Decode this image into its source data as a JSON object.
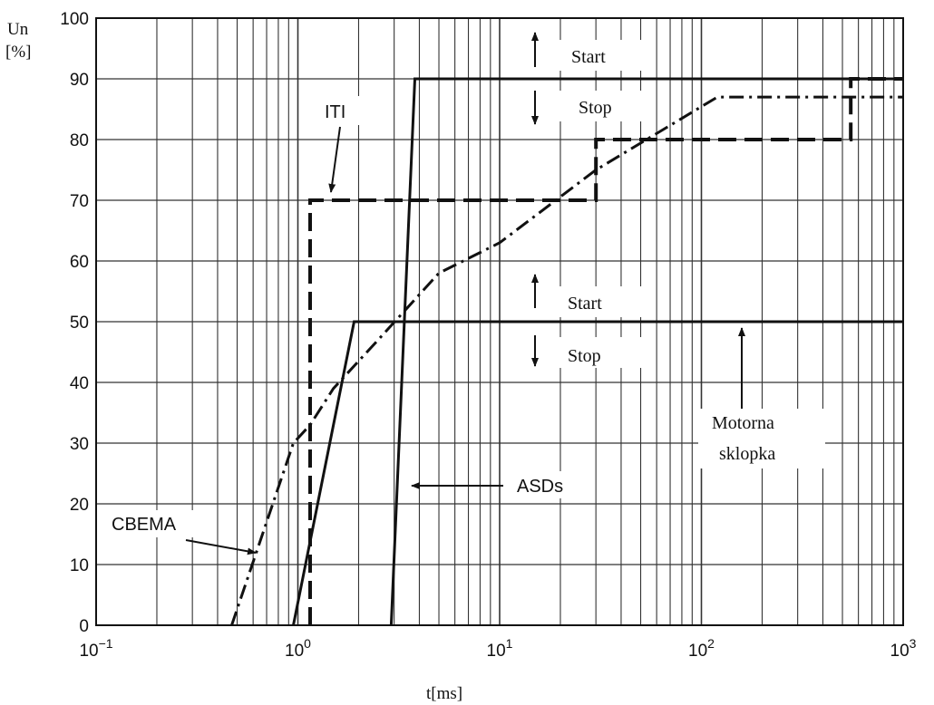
{
  "chart_data": {
    "type": "line",
    "title": "",
    "xlabel": "t[ms]",
    "ylabel_line1": "Un",
    "ylabel_line2": "[%]",
    "x_scale": "log",
    "xlim": [
      0.1,
      1000
    ],
    "ylim": [
      0,
      100
    ],
    "grid": true,
    "x_tick_labels": [
      {
        "value": 0.1,
        "base": "10",
        "exp": "−1"
      },
      {
        "value": 1,
        "base": "10",
        "exp": "0"
      },
      {
        "value": 10,
        "base": "10",
        "exp": "1"
      },
      {
        "value": 100,
        "base": "10",
        "exp": "2"
      },
      {
        "value": 1000,
        "base": "10",
        "exp": "3"
      }
    ],
    "y_ticks": [
      0,
      10,
      20,
      30,
      40,
      50,
      60,
      70,
      80,
      90,
      100
    ],
    "series": [
      {
        "name": "CBEMA",
        "style": "dashdot",
        "x": [
          0.47,
          0.95,
          1.15,
          1.5,
          2.5,
          5,
          10,
          30,
          120,
          1000
        ],
        "y": [
          0,
          30,
          33,
          39,
          47,
          58,
          63,
          75,
          87,
          87
        ]
      },
      {
        "name": "ITI",
        "style": "dashed",
        "x": [
          1.15,
          1.15,
          30,
          30,
          550,
          550,
          1000
        ],
        "y": [
          0,
          70,
          70,
          80,
          80,
          90,
          90
        ]
      },
      {
        "name": "ASDs",
        "style": "solid",
        "x": [
          2.9,
          3.8,
          1000
        ],
        "y": [
          0,
          90,
          90
        ]
      },
      {
        "name": "Motorna sklopka",
        "style": "solid",
        "x": [
          0.95,
          1.9,
          1000
        ],
        "y": [
          0,
          50,
          50
        ]
      }
    ],
    "annotations": {
      "iti": "ITI",
      "cbema": "CBEMA",
      "asds": "ASDs",
      "motor_line1": "Motorna",
      "motor_line2": "sklopka",
      "start_upper": "Start",
      "stop_upper": "Stop",
      "start_lower": "Start",
      "stop_lower": "Stop"
    }
  }
}
